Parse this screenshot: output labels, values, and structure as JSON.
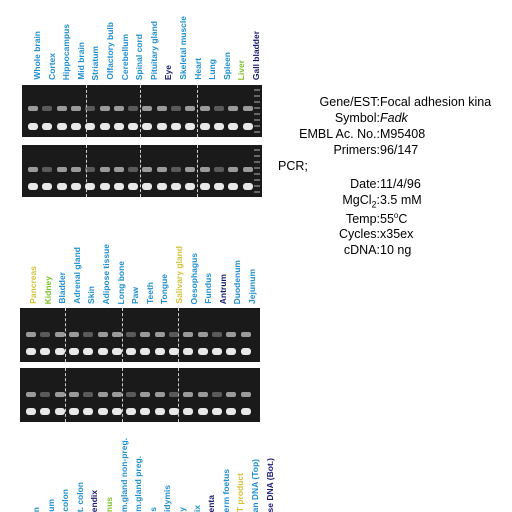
{
  "colors": {
    "blue": "#1f8fcf",
    "navy": "#1a1a6e",
    "yellow": "#d4c23a",
    "green": "#7fbf2a",
    "black": "#000000"
  },
  "panel1_lanes": [
    {
      "label": "Whole brain",
      "color": "#1f8fcf"
    },
    {
      "label": "Cortex",
      "color": "#1f8fcf"
    },
    {
      "label": "Hippocampus",
      "color": "#1f8fcf"
    },
    {
      "label": "Mid brain",
      "color": "#1f8fcf"
    },
    {
      "label": "Striatum",
      "color": "#1f8fcf"
    },
    {
      "label": "Olfactory bulb",
      "color": "#1f8fcf"
    },
    {
      "label": "Cerebellum",
      "color": "#1f8fcf"
    },
    {
      "label": "Spinal cord",
      "color": "#1f8fcf"
    },
    {
      "label": "Pituitary gland",
      "color": "#1f8fcf"
    },
    {
      "label": "Eye",
      "color": "#1a1a6e"
    },
    {
      "label": "Skeletal muscle",
      "color": "#1f8fcf"
    },
    {
      "label": "Heart",
      "color": "#1f8fcf"
    },
    {
      "label": "Lung",
      "color": "#1f8fcf"
    },
    {
      "label": "Spleen",
      "color": "#1f8fcf"
    },
    {
      "label": "Liver",
      "color": "#7fbf2a"
    },
    {
      "label": "Gall bladder",
      "color": "#1a1a6e"
    }
  ],
  "panel2_lanes": [
    {
      "label": "Pancreas",
      "color": "#d4c23a"
    },
    {
      "label": "Kidney",
      "color": "#7fbf2a"
    },
    {
      "label": "Bladder",
      "color": "#1f8fcf"
    },
    {
      "label": "Adrenal gland",
      "color": "#1f8fcf"
    },
    {
      "label": "Skin",
      "color": "#1f8fcf"
    },
    {
      "label": "Adipose tissue",
      "color": "#1f8fcf"
    },
    {
      "label": "Long bone",
      "color": "#1f8fcf"
    },
    {
      "label": "Paw",
      "color": "#1f8fcf"
    },
    {
      "label": "Teeth",
      "color": "#1f8fcf"
    },
    {
      "label": "Tongue",
      "color": "#1f8fcf"
    },
    {
      "label": "Salivary gland",
      "color": "#d4c23a"
    },
    {
      "label": "Oesophagus",
      "color": "#1f8fcf"
    },
    {
      "label": "Fundus",
      "color": "#1f8fcf"
    },
    {
      "label": "Antrum",
      "color": "#1a1a6e"
    },
    {
      "label": "Duodenum",
      "color": "#1f8fcf"
    },
    {
      "label": "Jejunum",
      "color": "#1f8fcf"
    }
  ],
  "panel3_lanes": [
    {
      "label": "n",
      "color": "#1f8fcf"
    },
    {
      "label": "um",
      "color": "#1f8fcf"
    },
    {
      "label": "colon",
      "color": "#1f8fcf"
    },
    {
      "label": "t. colon",
      "color": "#1f8fcf"
    },
    {
      "label": "endix",
      "color": "#1a1a6e"
    },
    {
      "label": "nus",
      "color": "#7fbf2a"
    },
    {
      "label": "m.gland non-preg.",
      "color": "#1f8fcf"
    },
    {
      "label": "m.gland preg.",
      "color": "#1f8fcf"
    },
    {
      "label": "s",
      "color": "#1f8fcf"
    },
    {
      "label": "idymis",
      "color": "#1f8fcf"
    },
    {
      "label": "y",
      "color": "#1f8fcf"
    },
    {
      "label": "ix",
      "color": "#1f8fcf"
    },
    {
      "label": "enta",
      "color": "#1a1a6e"
    },
    {
      "label": "erm foetus",
      "color": "#1f8fcf"
    },
    {
      "label": "T product",
      "color": "#d4c23a"
    },
    {
      "label": "an DNA (Top)",
      "color": "#1f8fcf"
    },
    {
      "label": "se DNA (Bot.)",
      "color": "#1a1a6e"
    }
  ],
  "info": {
    "gene_label": "Gene/EST:",
    "gene_value": "Focal adhesion kina",
    "symbol_label": "Symbol:",
    "symbol_value": "Fadk",
    "embl_label": "EMBL Ac. No.:",
    "embl_value": "M95408",
    "primers_label": "Primers:",
    "primers_value": "96/147",
    "pcr_label": "PCR;",
    "date_label": "Date:",
    "date_value": "11/4/96",
    "mgcl_label_prefix": "MgCl",
    "mgcl_label_sub": "2",
    "mgcl_label_suffix": ":",
    "mgcl_value": "3.5 mM",
    "temp_label": "Temp:",
    "temp_value_num": "55",
    "temp_value_sup": "o",
    "temp_value_unit": "C",
    "cycles_label": "Cycles:",
    "cycles_value": "x35ex",
    "cdna_label": "cDNA:",
    "cdna_value": "10 ng"
  }
}
